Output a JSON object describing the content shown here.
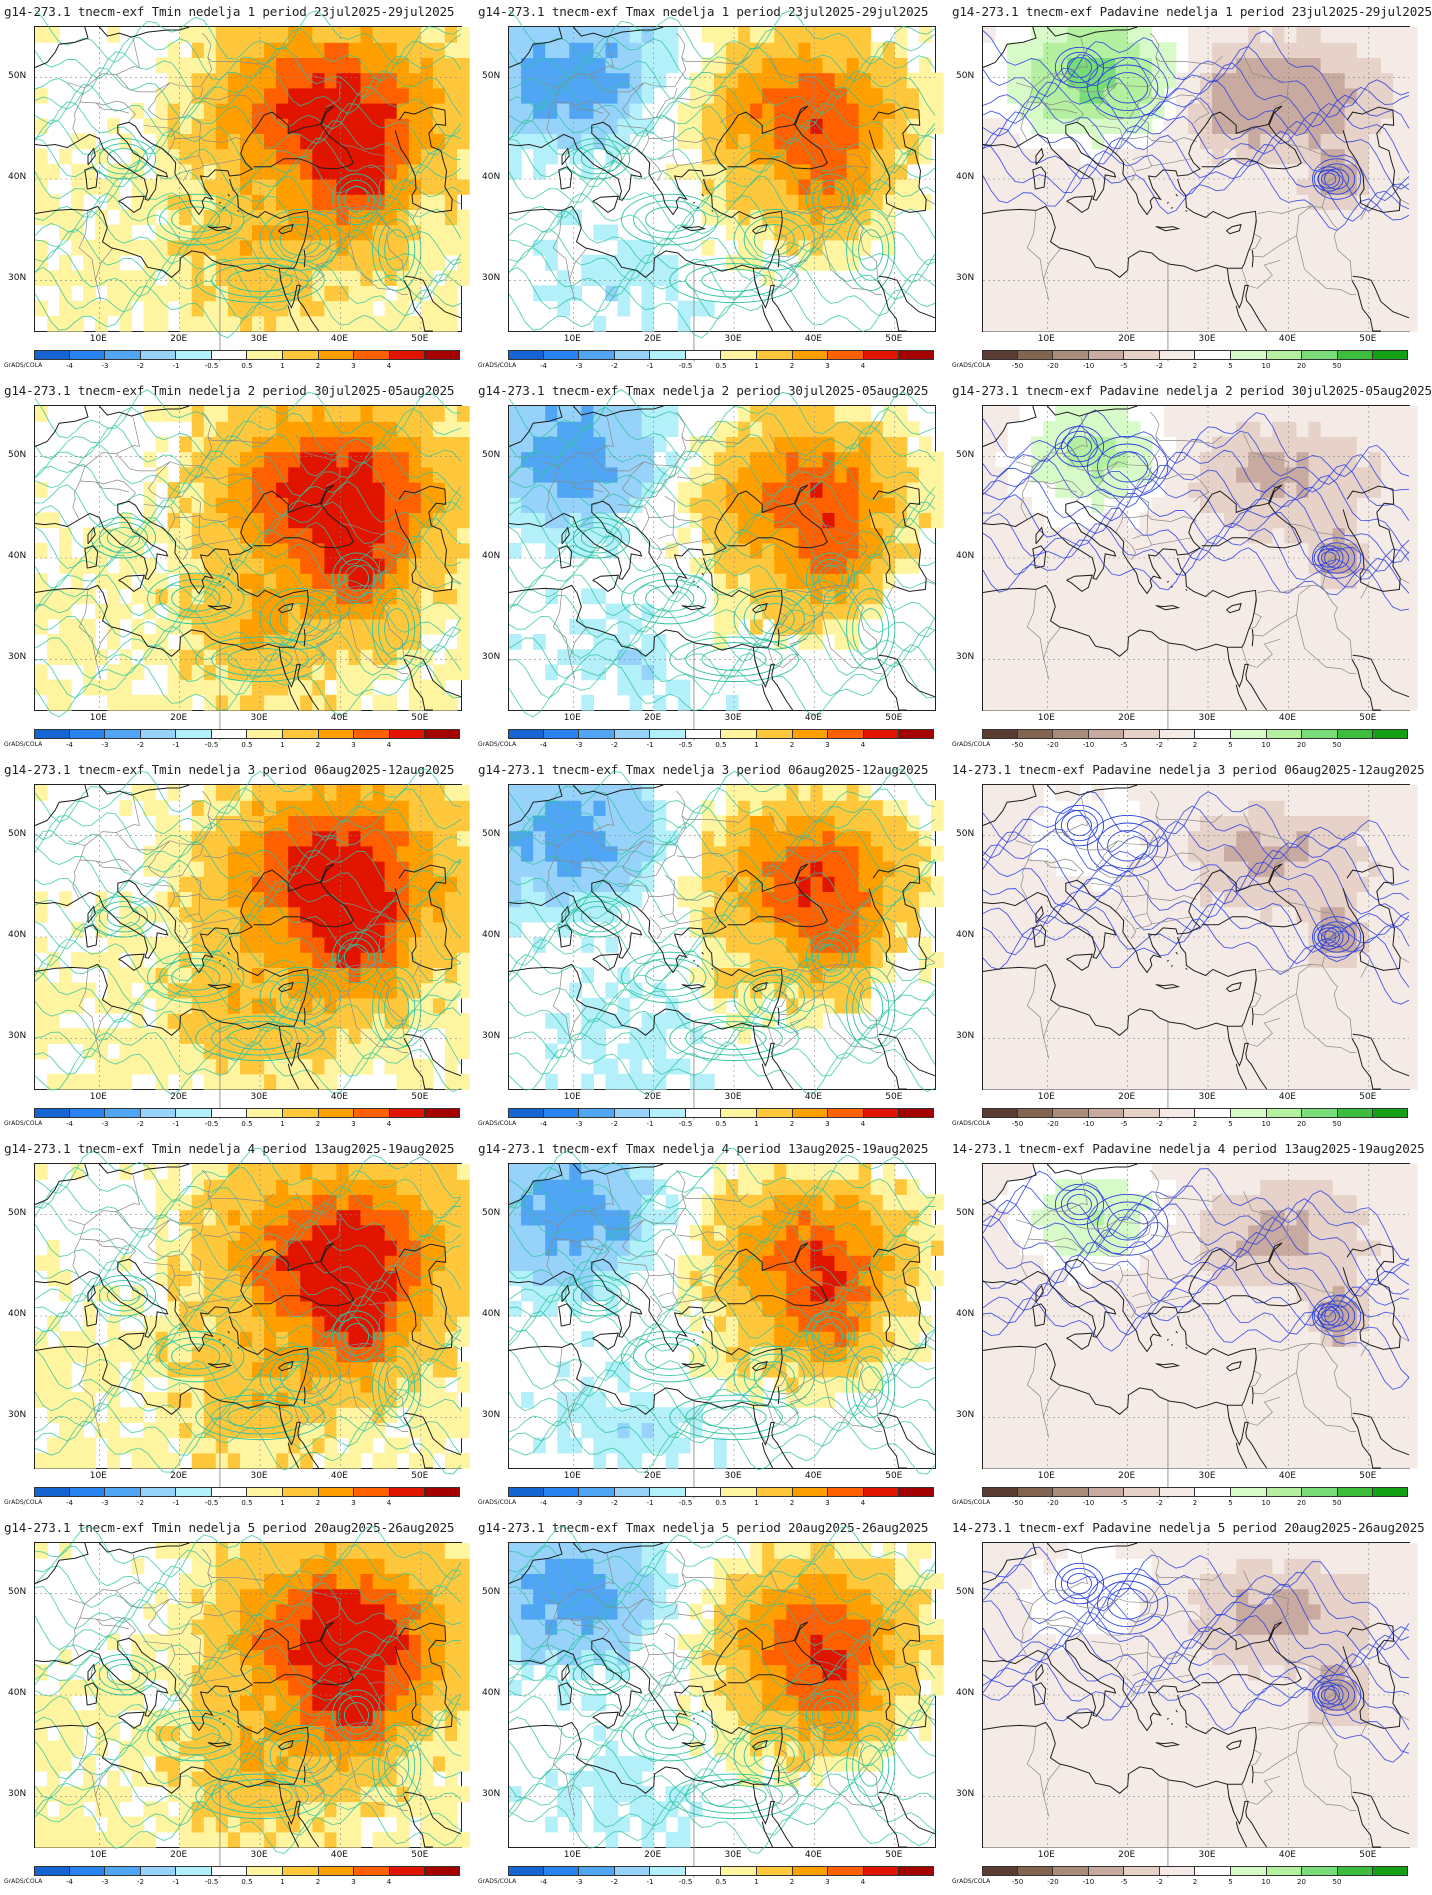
{
  "credit": "GrADS/COLA",
  "lat_labels": [
    "50N",
    "40N",
    "30N"
  ],
  "lon_labels": [
    "10E",
    "20E",
    "30E",
    "40E",
    "50E"
  ],
  "temp_scale": {
    "ticks": [
      "-4",
      "-3",
      "-2",
      "-1",
      "-0.5",
      "0.5",
      "1",
      "2",
      "3",
      "4"
    ],
    "colors": [
      "#1464d2",
      "#2882f0",
      "#50a5f5",
      "#96d2fa",
      "#b4f0fa",
      "#ffffff",
      "#fff5a0",
      "#ffc83c",
      "#ffa000",
      "#ff6000",
      "#e11400",
      "#a50000"
    ]
  },
  "precip_scale": {
    "ticks": [
      "-50",
      "-20",
      "-10",
      "-5",
      "-2",
      "2",
      "5",
      "10",
      "20",
      "50"
    ],
    "colors": [
      "#5a3c32",
      "#826450",
      "#aa8c7d",
      "#c8aaa0",
      "#e6d2c8",
      "#f5ebe6",
      "#ffffff",
      "#d7fac8",
      "#b4f0a0",
      "#78dc78",
      "#3cbe3c",
      "#14a014"
    ]
  },
  "rows": [
    {
      "week": "1",
      "titles": [
        "g14-273.1 tnecm-exf Tmin nedelja 1 period 23jul2025-29jul2025",
        "g14-273.1 tnecm-exf Tmax nedelja 1 period 23jul2025-29jul2025",
        "g14-273.1 tnecm-exf Padavine nedelja 1 period 23jul2025-29jul2025"
      ]
    },
    {
      "week": "2",
      "titles": [
        "g14-273.1 tnecm-exf Tmin nedelja 2 period 30jul2025-05aug2025",
        "g14-273.1 tnecm-exf Tmax nedelja 2 period 30jul2025-05aug2025",
        "g14-273.1 tnecm-exf Padavine nedelja 2 period 30jul2025-05aug2025"
      ]
    },
    {
      "week": "3",
      "titles": [
        "g14-273.1 tnecm-exf Tmin nedelja 3 period 06aug2025-12aug2025",
        "g14-273.1 tnecm-exf Tmax nedelja 3 period 06aug2025-12aug2025",
        "14-273.1 tnecm-exf Padavine nedelja 3 period 06aug2025-12aug2025"
      ]
    },
    {
      "week": "4",
      "titles": [
        "g14-273.1 tnecm-exf Tmin nedelja 4 period 13aug2025-19aug2025",
        "g14-273.1 tnecm-exf Tmax nedelja 4 period 13aug2025-19aug2025",
        "14-273.1 tnecm-exf Padavine nedelja 4 period 13aug2025-19aug2025"
      ]
    },
    {
      "week": "5",
      "titles": [
        "g14-273.1 tnecm-exf Tmin nedelja 5 period 20aug2025-26aug2025",
        "g14-273.1 tnecm-exf Tmax nedelja 5 period 20aug2025-26aug2025",
        "14-273.1 tnecm-exf Padavine nedelja 5 period 20aug2025-26aug2025"
      ]
    }
  ],
  "columns": [
    {
      "variable": "Tmin",
      "kind": "temp",
      "contour_color": "#2ec4a0",
      "warm_bias": 1.0
    },
    {
      "variable": "Tmax",
      "kind": "temp",
      "contour_color": "#2ec4a0",
      "warm_bias": 0.3
    },
    {
      "variable": "Padavine",
      "kind": "precip",
      "contour_color": "#2a40e0",
      "warm_bias": 0
    }
  ]
}
